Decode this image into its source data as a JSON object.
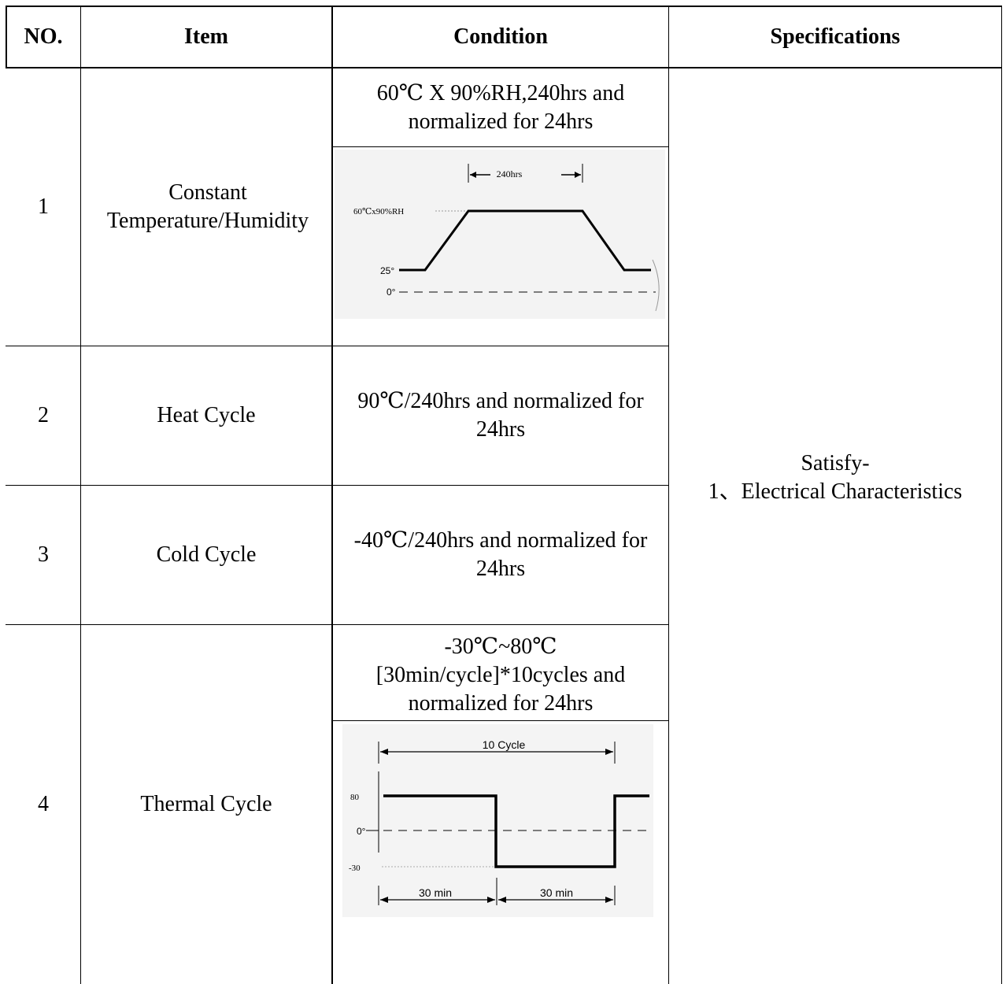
{
  "headers": {
    "no": "NO.",
    "item": "Item",
    "condition": "Condition",
    "specifications": "Specifications"
  },
  "rows": [
    {
      "no": "1",
      "item": "Constant Temperature/Humidity",
      "condition": "60℃ X 90%RH,240hrs and normalized for 24hrs",
      "diagram": {
        "duration_label": "240hrs",
        "level_label": "60℃x90%RH",
        "start_label": "25°",
        "zero_label": "0°"
      }
    },
    {
      "no": "2",
      "item": "Heat Cycle",
      "condition": "90℃/240hrs and normalized for 24hrs"
    },
    {
      "no": "3",
      "item": "Cold Cycle",
      "condition": "-40℃/240hrs and normalized for 24hrs"
    },
    {
      "no": "4",
      "item": "Thermal Cycle",
      "condition_lines": [
        "-30℃~80℃",
        "[30min/cycle]*10cycles and",
        "normalized for 24hrs"
      ],
      "diagram": {
        "cycle_label": "10 Cycle",
        "high_label": "80",
        "zero_label": "0°",
        "low_label": "-30",
        "half_a_label": "30 min",
        "half_b_label": "30 min"
      }
    }
  ],
  "specification": {
    "line1": "Satisfy-",
    "line2": "1、Electrical Characteristics"
  }
}
